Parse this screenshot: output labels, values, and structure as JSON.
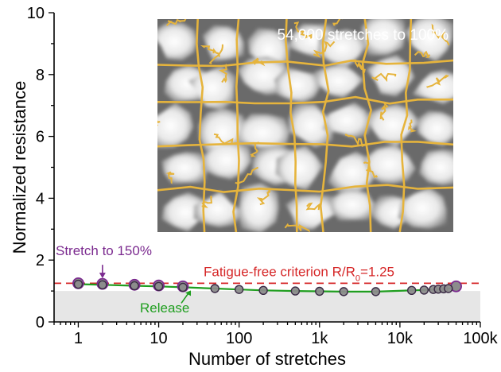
{
  "chart_data": {
    "type": "scatter",
    "xlabel": "Number of stretches",
    "ylabel": "Normalized resistance",
    "x_scale": "log",
    "xlim": [
      0.5,
      100000
    ],
    "ylim": [
      0,
      10
    ],
    "x_ticks": [
      1,
      10,
      100,
      1000,
      10000,
      100000
    ],
    "x_tick_labels": [
      "1",
      "10",
      "100",
      "1k",
      "10k",
      "100k"
    ],
    "y_ticks": [
      0,
      2,
      4,
      6,
      8,
      10
    ],
    "y_tick_labels": [
      "0",
      "2",
      "4",
      "6",
      "8",
      "10"
    ],
    "shaded_band": [
      0,
      1
    ],
    "series": [
      {
        "name": "Stretch to 150%",
        "color": "#7b2a8f",
        "x": [
          1,
          2,
          5,
          10,
          20,
          50000
        ],
        "y": [
          1.25,
          1.23,
          1.2,
          1.18,
          1.15,
          1.15
        ]
      },
      {
        "name": "Release",
        "color": "#1f9e1f",
        "x": [
          1,
          2,
          5,
          10,
          20,
          50,
          100,
          200,
          500,
          1000,
          2000,
          5000,
          14000,
          20000,
          26000,
          30000,
          35000,
          40000,
          50000
        ],
        "y": [
          1.22,
          1.2,
          1.17,
          1.15,
          1.12,
          1.08,
          1.05,
          1.02,
          1.0,
          0.99,
          0.98,
          0.98,
          1.02,
          1.03,
          1.05,
          1.06,
          1.07,
          1.08,
          1.1
        ]
      }
    ],
    "reference_line": {
      "label_prefix": "Fatigue-free criterion R/R",
      "label_sub": "0",
      "label_suffix": "=1.25",
      "value": 1.25,
      "color": "#d62728"
    },
    "annotations": {
      "stretch": "Stretch to 150%",
      "release": "Release"
    },
    "inset": {
      "caption": "54,000 stretches to 100%",
      "crack_color": "#e6b43c"
    },
    "grid": false,
    "legend": "none"
  }
}
